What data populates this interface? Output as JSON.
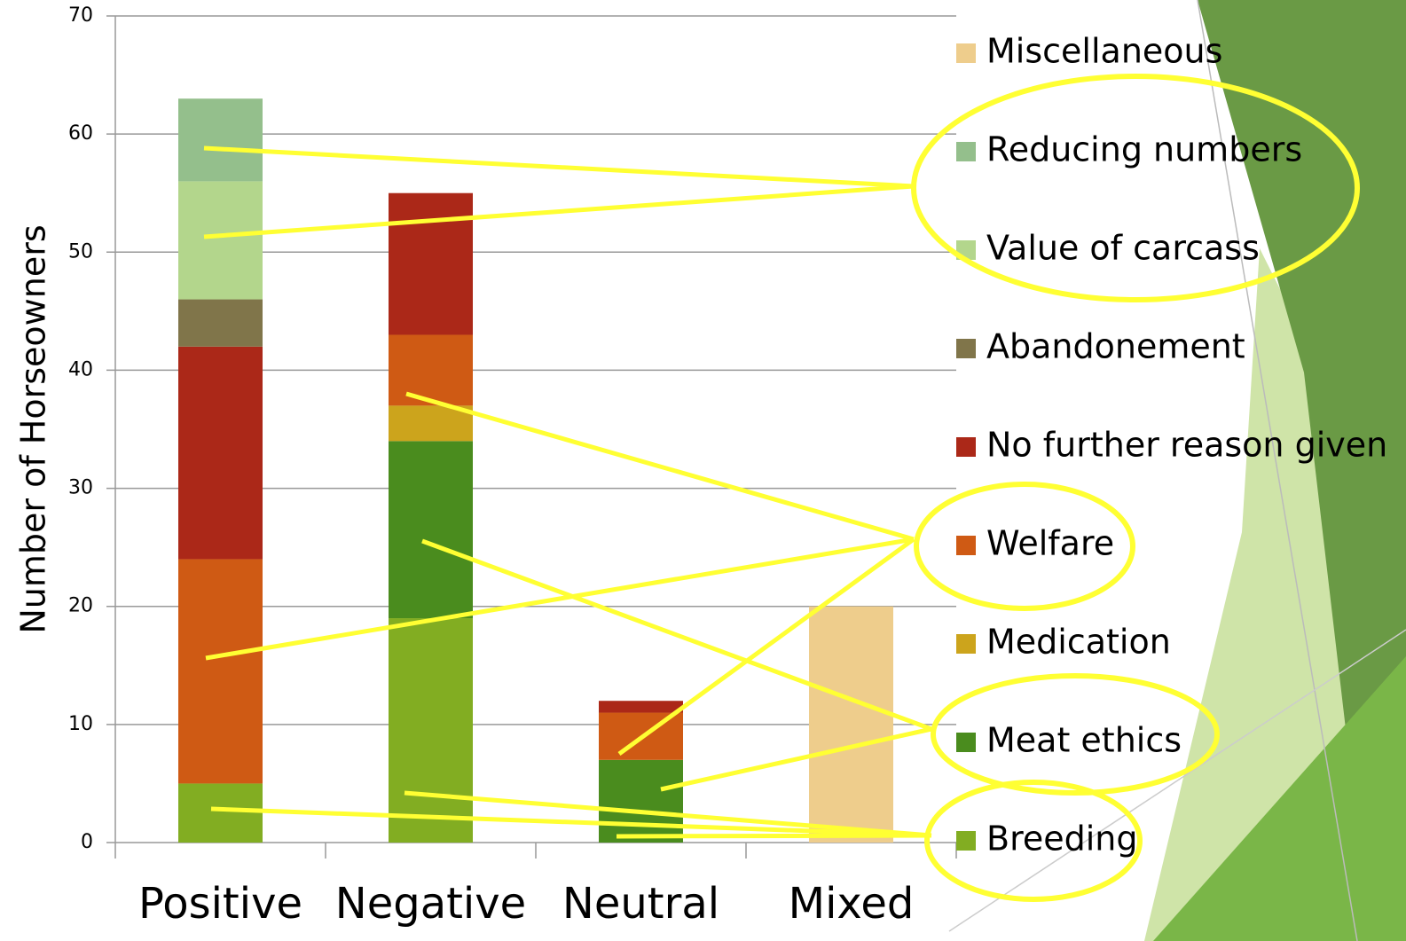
{
  "chart_data": {
    "type": "stacked_bar",
    "y_label": "Number of Horseowners",
    "categories": [
      "Positive",
      "Negative",
      "Neutral",
      "Mixed"
    ],
    "series": [
      {
        "name": "Breeding",
        "color": "#82ad22",
        "values": [
          5,
          19,
          0,
          0
        ]
      },
      {
        "name": "Meat ethics",
        "color": "#4a8c1e",
        "values": [
          0,
          15,
          7,
          0
        ]
      },
      {
        "name": "Medication",
        "color": "#cca41c",
        "values": [
          0,
          3,
          0,
          0
        ]
      },
      {
        "name": "Welfare",
        "color": "#cf5a14",
        "values": [
          19,
          6,
          4,
          0
        ]
      },
      {
        "name": "No further reason given",
        "color": "#ab2818",
        "values": [
          18,
          12,
          1,
          0
        ]
      },
      {
        "name": "Abandonement",
        "color": "#80754a",
        "values": [
          4,
          0,
          0,
          0
        ]
      },
      {
        "name": "Value of carcass",
        "color": "#b3d68c",
        "values": [
          10,
          0,
          0,
          0
        ]
      },
      {
        "name": "Reducing numbers",
        "color": "#94bf8c",
        "values": [
          7,
          0,
          0,
          0
        ]
      },
      {
        "name": "Miscellaneous",
        "color": "#eecd8c",
        "values": [
          0,
          0,
          0,
          20
        ]
      }
    ],
    "ylim": [
      0,
      70
    ],
    "yticks": [
      0,
      10,
      20,
      30,
      40,
      50,
      60,
      70
    ],
    "grid": true,
    "legend": "right"
  }
}
